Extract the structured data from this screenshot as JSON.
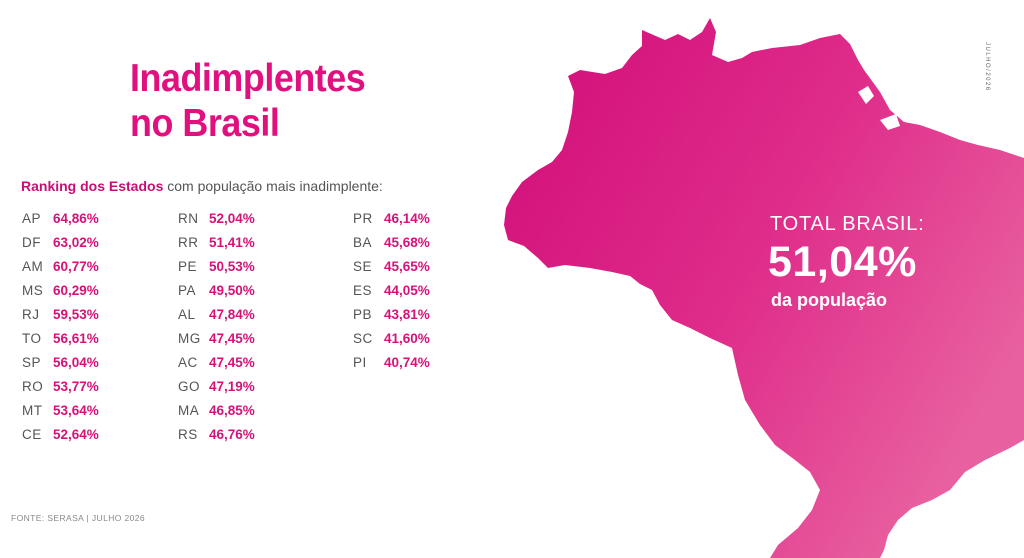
{
  "title": {
    "line1": "Inadimplentes",
    "line2": "no Brasil"
  },
  "subtitle": {
    "highlight": "Ranking dos Estados",
    "rest": " com população mais inadimplente:"
  },
  "ranking": {
    "column1": [
      {
        "uf": "AP",
        "pct": "64,86%"
      },
      {
        "uf": "DF",
        "pct": "63,02%"
      },
      {
        "uf": "AM",
        "pct": "60,77%"
      },
      {
        "uf": "MS",
        "pct": "60,29%"
      },
      {
        "uf": "RJ",
        "pct": "59,53%"
      },
      {
        "uf": "TO",
        "pct": "56,61%"
      },
      {
        "uf": "SP",
        "pct": "56,04%"
      },
      {
        "uf": "RO",
        "pct": "53,77%"
      },
      {
        "uf": "MT",
        "pct": "53,64%"
      },
      {
        "uf": "CE",
        "pct": "52,64%"
      }
    ],
    "column2": [
      {
        "uf": "RN",
        "pct": "52,04%"
      },
      {
        "uf": "RR",
        "pct": "51,41%"
      },
      {
        "uf": "PE",
        "pct": "50,53%"
      },
      {
        "uf": "PA",
        "pct": "49,50%"
      },
      {
        "uf": "AL",
        "pct": "47,84%"
      },
      {
        "uf": "MG",
        "pct": "47,45%"
      },
      {
        "uf": "AC",
        "pct": "47,45%"
      },
      {
        "uf": "GO",
        "pct": "47,19%"
      },
      {
        "uf": "MA",
        "pct": "46,85%"
      },
      {
        "uf": "RS",
        "pct": "46,76%"
      }
    ],
    "column3": [
      {
        "uf": "PR",
        "pct": "46,14%"
      },
      {
        "uf": "BA",
        "pct": "45,68%"
      },
      {
        "uf": "SE",
        "pct": "45,65%"
      },
      {
        "uf": "ES",
        "pct": "44,05%"
      },
      {
        "uf": "PB",
        "pct": "43,81%"
      },
      {
        "uf": "SC",
        "pct": "41,60%"
      },
      {
        "uf": "PI",
        "pct": "40,74%"
      }
    ]
  },
  "total": {
    "label": "TOTAL BRASIL:",
    "value": "51,04%",
    "caption": "da população"
  },
  "source": "FONTE: SERASA | JULHO 2026",
  "vertical_date": "JULHO/2026",
  "colors": {
    "accent": "#e0117f",
    "map_light": "#e65aa0",
    "map_dark": "#d40f78",
    "text": "#555555"
  }
}
